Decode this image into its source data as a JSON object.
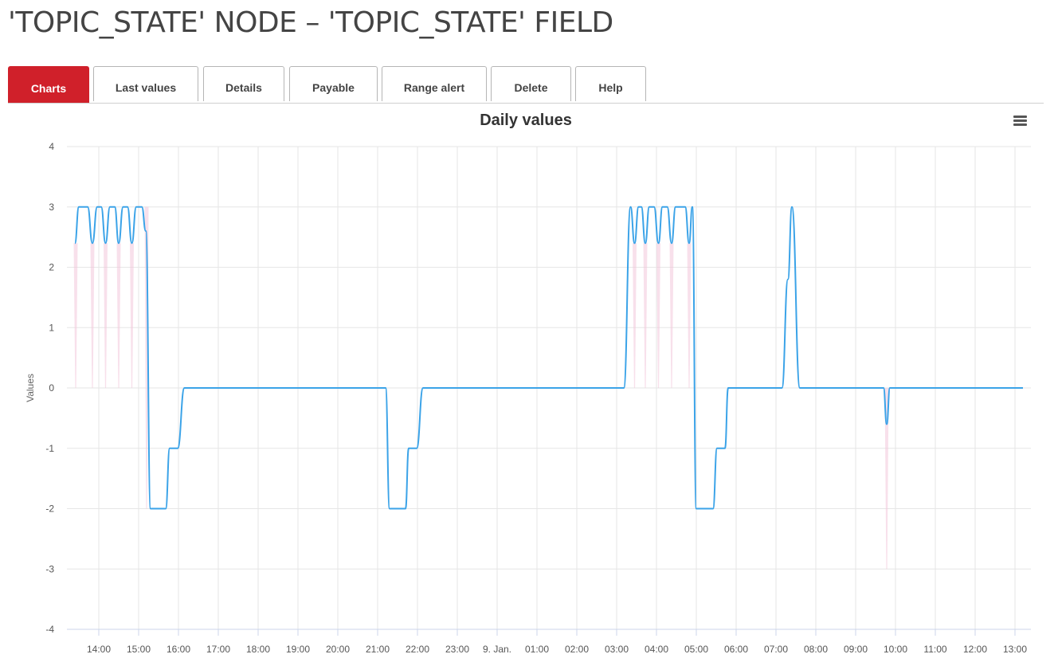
{
  "page": {
    "title": "'TOPIC_STATE' NODE – 'TOPIC_STATE' FIELD"
  },
  "tabs": [
    {
      "label": "Charts",
      "active": true
    },
    {
      "label": "Last values",
      "active": false
    },
    {
      "label": "Details",
      "active": false
    },
    {
      "label": "Payable",
      "active": false
    },
    {
      "label": "Range alert",
      "active": false
    },
    {
      "label": "Delete",
      "active": false
    },
    {
      "label": "Help",
      "active": false
    }
  ],
  "colors": {
    "accent": "#d0202a",
    "series_line": "#3ba3e8",
    "range_band": "#f3c6da"
  },
  "chart_menu_icon": "hamburger-menu-icon",
  "chart_data": {
    "type": "line",
    "title": "Daily values",
    "ylabel": "Values",
    "xlabel": "",
    "ylim": [
      -4,
      4
    ],
    "y_ticks": [
      "-4",
      "-3",
      "-2",
      "-1",
      "0",
      "1",
      "2",
      "3",
      "4"
    ],
    "x_tick_labels": [
      "14:00",
      "15:00",
      "16:00",
      "17:00",
      "18:00",
      "19:00",
      "20:00",
      "21:00",
      "22:00",
      "23:00",
      "9. Jan.",
      "01:00",
      "02:00",
      "03:00",
      "04:00",
      "05:00",
      "06:00",
      "07:00",
      "08:00",
      "09:00",
      "10:00",
      "11:00",
      "12:00",
      "13:00"
    ],
    "x_range_hours": [
      13.4,
      13.2
    ],
    "grid": true,
    "legend": "none",
    "series": [
      {
        "values": [
          [
            13.4,
            2.4
          ],
          [
            13.5,
            3
          ],
          [
            13.72,
            3
          ],
          [
            13.84,
            2.4
          ],
          [
            13.96,
            3
          ],
          [
            14.06,
            3
          ],
          [
            14.17,
            2.4
          ],
          [
            14.28,
            3
          ],
          [
            14.4,
            3
          ],
          [
            14.5,
            2.4
          ],
          [
            14.61,
            3
          ],
          [
            14.72,
            3
          ],
          [
            14.83,
            2.4
          ],
          [
            14.94,
            3
          ],
          [
            15.08,
            3
          ],
          [
            15.18,
            2.6
          ],
          [
            15.3,
            -2
          ],
          [
            15.68,
            -2
          ],
          [
            15.78,
            -1
          ],
          [
            15.98,
            -1
          ],
          [
            16.15,
            0
          ],
          [
            21.2,
            0
          ],
          [
            21.3,
            -2
          ],
          [
            21.7,
            -2
          ],
          [
            21.78,
            -1
          ],
          [
            21.98,
            -1
          ],
          [
            22.14,
            0
          ],
          [
            27.18,
            0
          ],
          [
            27.35,
            3
          ],
          [
            27.45,
            2.4
          ],
          [
            27.55,
            3
          ],
          [
            27.62,
            3
          ],
          [
            27.72,
            2.4
          ],
          [
            27.82,
            3
          ],
          [
            27.94,
            3
          ],
          [
            28.05,
            2.4
          ],
          [
            28.15,
            3
          ],
          [
            28.27,
            3
          ],
          [
            28.38,
            2.4
          ],
          [
            28.48,
            3
          ],
          [
            28.72,
            3
          ],
          [
            28.82,
            2.4
          ],
          [
            28.9,
            3
          ],
          [
            29.0,
            -2
          ],
          [
            29.42,
            -2
          ],
          [
            29.52,
            -1
          ],
          [
            29.72,
            -1
          ],
          [
            29.8,
            0
          ],
          [
            31.15,
            0
          ],
          [
            31.3,
            1.8
          ],
          [
            31.4,
            3
          ],
          [
            31.6,
            0
          ],
          [
            33.7,
            0
          ],
          [
            33.78,
            -0.6
          ],
          [
            33.86,
            0
          ],
          [
            37.2,
            0
          ]
        ]
      }
    ],
    "range_bands": [
      {
        "x": 13.42,
        "low": 0,
        "high": 2.4
      },
      {
        "x": 13.84,
        "low": 0,
        "high": 2.4
      },
      {
        "x": 14.17,
        "low": 0,
        "high": 2.4
      },
      {
        "x": 14.5,
        "low": 0,
        "high": 2.4
      },
      {
        "x": 14.83,
        "low": 0,
        "high": 2.4
      },
      {
        "x": 15.2,
        "low": -2,
        "high": 3
      },
      {
        "x": 27.45,
        "low": 0,
        "high": 2.4
      },
      {
        "x": 27.72,
        "low": 0,
        "high": 2.4
      },
      {
        "x": 28.05,
        "low": 0,
        "high": 2.4
      },
      {
        "x": 28.38,
        "low": 0,
        "high": 2.4
      },
      {
        "x": 28.82,
        "low": 0,
        "high": 2.4
      },
      {
        "x": 33.78,
        "low": -3,
        "high": 0
      }
    ]
  }
}
